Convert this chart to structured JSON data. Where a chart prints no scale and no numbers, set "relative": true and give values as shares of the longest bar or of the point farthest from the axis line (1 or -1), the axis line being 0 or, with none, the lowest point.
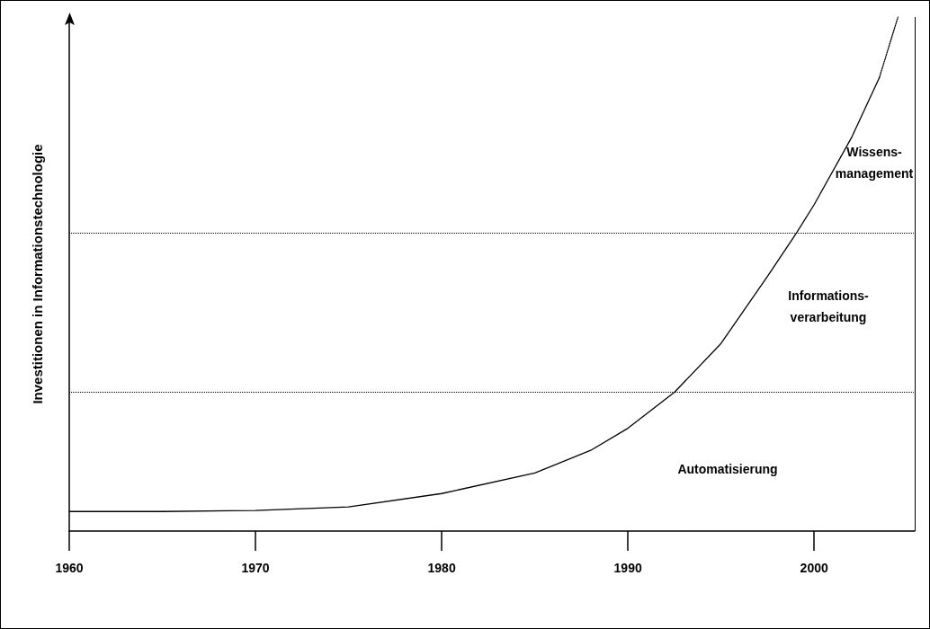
{
  "chart_data": {
    "type": "line",
    "relative": true,
    "ylabel": "Investitionen in Informationstechnologie",
    "xlim": [
      1960,
      2005.4
    ],
    "xticks": [
      1960,
      1970,
      1980,
      1990,
      2000
    ],
    "grid": false,
    "marker": "none",
    "series": [
      {
        "color": "#000000",
        "line_style": "solid",
        "x": [
          1960,
          1965,
          1970,
          1975,
          1980,
          1985,
          1988,
          1990,
          1992.5,
          1995,
          1997.5,
          1999,
          2000,
          2002,
          2003.5
        ],
        "values": [
          0.038,
          0.038,
          0.04,
          0.047,
          0.073,
          0.113,
          0.157,
          0.2,
          0.27,
          0.365,
          0.496,
          0.577,
          0.635,
          0.765,
          0.882
        ]
      },
      {
        "color": "#000000",
        "line_style": "dotted",
        "x": [
          2003.5,
          2004.5
        ],
        "values": [
          0.882,
          1.0
        ]
      }
    ],
    "ref_lines": [
      {
        "axis": "y",
        "value": 0.577,
        "line_style": "dotted",
        "color": "#000000"
      },
      {
        "axis": "y",
        "value": 0.27,
        "line_style": "dotted",
        "color": "#000000"
      },
      {
        "axis": "x",
        "value": 2005.4,
        "line_style": "solid",
        "color": "#000000"
      }
    ],
    "annotations": [
      "Wissens-\nmanagement",
      "Informations-\nverarbeitung",
      "Automatisierung"
    ]
  }
}
